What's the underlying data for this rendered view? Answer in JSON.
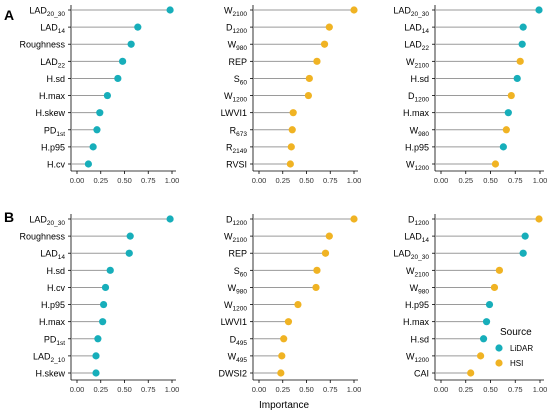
{
  "figure": {
    "x_axis_label": "Importance",
    "row_labels": [
      "A",
      "B"
    ]
  },
  "legend": {
    "title": "Source",
    "items": [
      {
        "label": "LiDAR",
        "color": "#17aeba"
      },
      {
        "label": "HSI",
        "color": "#f0b323"
      }
    ]
  },
  "chart_data": [
    {
      "type": "lollipop",
      "row": "A",
      "col": 1,
      "xlim": [
        0,
        1
      ],
      "xticks": [
        "0.00",
        "0.25",
        "0.50",
        "0.75",
        "1.00"
      ],
      "items": [
        {
          "main": "LAD",
          "sub": "20_30",
          "value": 0.98,
          "source": "LiDAR"
        },
        {
          "main": "LAD",
          "sub": "14",
          "value": 0.64,
          "source": "LiDAR"
        },
        {
          "main": "Roughness",
          "sub": "",
          "value": 0.57,
          "source": "LiDAR"
        },
        {
          "main": "LAD",
          "sub": "22",
          "value": 0.48,
          "source": "LiDAR"
        },
        {
          "main": "H.sd",
          "sub": "",
          "value": 0.43,
          "source": "LiDAR"
        },
        {
          "main": "H.max",
          "sub": "",
          "value": 0.32,
          "source": "LiDAR"
        },
        {
          "main": "H.skew",
          "sub": "",
          "value": 0.24,
          "source": "LiDAR"
        },
        {
          "main": "PD",
          "sub": "1st",
          "value": 0.21,
          "source": "LiDAR"
        },
        {
          "main": "H.p95",
          "sub": "",
          "value": 0.17,
          "source": "LiDAR"
        },
        {
          "main": "H.cv",
          "sub": "",
          "value": 0.12,
          "source": "LiDAR"
        }
      ]
    },
    {
      "type": "lollipop",
      "row": "A",
      "col": 2,
      "xlim": [
        0,
        1
      ],
      "xticks": [
        "0.00",
        "0.25",
        "0.50",
        "0.75",
        "1.00"
      ],
      "items": [
        {
          "main": "W",
          "sub": "2100",
          "value": 1.0,
          "source": "HSI"
        },
        {
          "main": "D",
          "sub": "1200",
          "value": 0.74,
          "source": "HSI"
        },
        {
          "main": "W",
          "sub": "980",
          "value": 0.69,
          "source": "HSI"
        },
        {
          "main": "REP",
          "sub": "",
          "value": 0.61,
          "source": "HSI"
        },
        {
          "main": "S",
          "sub": "60",
          "value": 0.53,
          "source": "HSI"
        },
        {
          "main": "W",
          "sub": "1200",
          "value": 0.52,
          "source": "HSI"
        },
        {
          "main": "LWVI1",
          "sub": "",
          "value": 0.36,
          "source": "HSI"
        },
        {
          "main": "R",
          "sub": "673",
          "value": 0.35,
          "source": "HSI"
        },
        {
          "main": "R",
          "sub": "2149",
          "value": 0.34,
          "source": "HSI"
        },
        {
          "main": "RVSI",
          "sub": "",
          "value": 0.33,
          "source": "HSI"
        }
      ]
    },
    {
      "type": "lollipop",
      "row": "A",
      "col": 3,
      "xlim": [
        0,
        1
      ],
      "xticks": [
        "0.00",
        "0.25",
        "0.50",
        "0.75",
        "1.00"
      ],
      "items": [
        {
          "main": "LAD",
          "sub": "20_30",
          "value": 0.99,
          "source": "LiDAR"
        },
        {
          "main": "LAD",
          "sub": "14",
          "value": 0.83,
          "source": "LiDAR"
        },
        {
          "main": "LAD",
          "sub": "22",
          "value": 0.82,
          "source": "LiDAR"
        },
        {
          "main": "W",
          "sub": "2100",
          "value": 0.8,
          "source": "HSI"
        },
        {
          "main": "H.sd",
          "sub": "",
          "value": 0.77,
          "source": "LiDAR"
        },
        {
          "main": "D",
          "sub": "1200",
          "value": 0.71,
          "source": "HSI"
        },
        {
          "main": "H.max",
          "sub": "",
          "value": 0.68,
          "source": "LiDAR"
        },
        {
          "main": "W",
          "sub": "980",
          "value": 0.66,
          "source": "HSI"
        },
        {
          "main": "H.p95",
          "sub": "",
          "value": 0.63,
          "source": "LiDAR"
        },
        {
          "main": "W",
          "sub": "1200",
          "value": 0.55,
          "source": "HSI"
        }
      ]
    },
    {
      "type": "lollipop",
      "row": "B",
      "col": 1,
      "xlim": [
        0,
        1
      ],
      "xticks": [
        "0.00",
        "0.25",
        "0.50",
        "0.75",
        "1.00"
      ],
      "items": [
        {
          "main": "LAD",
          "sub": "20_30",
          "value": 0.98,
          "source": "LiDAR"
        },
        {
          "main": "Roughness",
          "sub": "",
          "value": 0.56,
          "source": "LiDAR"
        },
        {
          "main": "LAD",
          "sub": "14",
          "value": 0.55,
          "source": "LiDAR"
        },
        {
          "main": "H.sd",
          "sub": "",
          "value": 0.35,
          "source": "LiDAR"
        },
        {
          "main": "H.cv",
          "sub": "",
          "value": 0.3,
          "source": "LiDAR"
        },
        {
          "main": "H.p95",
          "sub": "",
          "value": 0.28,
          "source": "LiDAR"
        },
        {
          "main": "H.max",
          "sub": "",
          "value": 0.27,
          "source": "LiDAR"
        },
        {
          "main": "PD",
          "sub": "1st",
          "value": 0.22,
          "source": "LiDAR"
        },
        {
          "main": "LAD",
          "sub": "2_10",
          "value": 0.2,
          "source": "LiDAR"
        },
        {
          "main": "H.skew",
          "sub": "",
          "value": 0.2,
          "source": "LiDAR"
        }
      ]
    },
    {
      "type": "lollipop",
      "row": "B",
      "col": 2,
      "xlim": [
        0,
        1
      ],
      "xticks": [
        "0.00",
        "0.25",
        "0.50",
        "0.75",
        "1.00"
      ],
      "items": [
        {
          "main": "D",
          "sub": "1200",
          "value": 1.0,
          "source": "HSI"
        },
        {
          "main": "W",
          "sub": "2100",
          "value": 0.74,
          "source": "HSI"
        },
        {
          "main": "REP",
          "sub": "",
          "value": 0.7,
          "source": "HSI"
        },
        {
          "main": "S",
          "sub": "60",
          "value": 0.61,
          "source": "HSI"
        },
        {
          "main": "W",
          "sub": "980",
          "value": 0.6,
          "source": "HSI"
        },
        {
          "main": "W",
          "sub": "1200",
          "value": 0.41,
          "source": "HSI"
        },
        {
          "main": "LWVI1",
          "sub": "",
          "value": 0.31,
          "source": "HSI"
        },
        {
          "main": "D",
          "sub": "495",
          "value": 0.26,
          "source": "HSI"
        },
        {
          "main": "W",
          "sub": "495",
          "value": 0.24,
          "source": "HSI"
        },
        {
          "main": "DWSI2",
          "sub": "",
          "value": 0.23,
          "source": "HSI"
        }
      ]
    },
    {
      "type": "lollipop",
      "row": "B",
      "col": 3,
      "xlim": [
        0,
        1
      ],
      "xticks": [
        "0.00",
        "0.25",
        "0.50",
        "0.75",
        "1.00"
      ],
      "items": [
        {
          "main": "D",
          "sub": "1200",
          "value": 0.99,
          "source": "HSI"
        },
        {
          "main": "LAD",
          "sub": "14",
          "value": 0.85,
          "source": "LiDAR"
        },
        {
          "main": "LAD",
          "sub": "20_30",
          "value": 0.83,
          "source": "LiDAR"
        },
        {
          "main": "W",
          "sub": "2100",
          "value": 0.59,
          "source": "HSI"
        },
        {
          "main": "W",
          "sub": "980",
          "value": 0.54,
          "source": "HSI"
        },
        {
          "main": "H.p95",
          "sub": "",
          "value": 0.49,
          "source": "LiDAR"
        },
        {
          "main": "H.max",
          "sub": "",
          "value": 0.46,
          "source": "LiDAR"
        },
        {
          "main": "H.sd",
          "sub": "",
          "value": 0.43,
          "source": "LiDAR"
        },
        {
          "main": "W",
          "sub": "1200",
          "value": 0.4,
          "source": "HSI"
        },
        {
          "main": "CAI",
          "sub": "",
          "value": 0.3,
          "source": "HSI"
        }
      ]
    }
  ]
}
